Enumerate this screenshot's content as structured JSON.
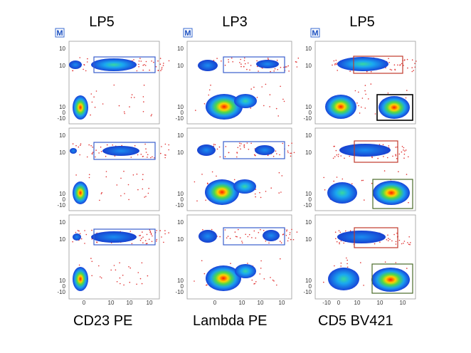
{
  "chart_data": {
    "type": "scatter",
    "description_free": true,
    "marker_label": "M",
    "column_titles": [
      "LP5",
      "LP3",
      "LP5"
    ],
    "x_axis_labels": [
      "CD23 PE",
      "Lambda PE",
      "CD5 BV421"
    ],
    "y_tick_labels": [
      "10",
      "10",
      "10",
      "0",
      "-10"
    ],
    "x_tick_labels": {
      "default": [
        "0",
        "10",
        "10",
        "10"
      ],
      "third_column": [
        "-10",
        "0",
        "10",
        "10",
        "10"
      ]
    },
    "colors": {
      "gate_blue": "#3a5fcd",
      "gate_red": "#c0392b",
      "gate_black": "#000000",
      "gate_green": "#4a6b2a",
      "axis": "#888888"
    }
  }
}
